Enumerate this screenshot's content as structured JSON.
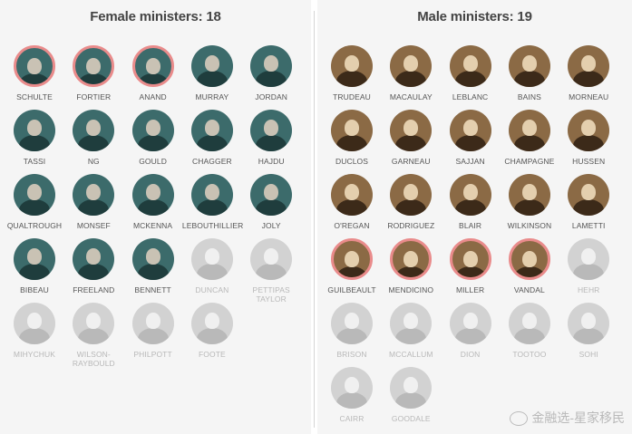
{
  "female": {
    "title": "Female ministers: 18",
    "people": [
      {
        "name": "SCHULTE",
        "style": "teal",
        "ring": true
      },
      {
        "name": "FORTIER",
        "style": "teal",
        "ring": true
      },
      {
        "name": "ANAND",
        "style": "teal",
        "ring": true
      },
      {
        "name": "MURRAY",
        "style": "teal",
        "ring": false
      },
      {
        "name": "JORDAN",
        "style": "teal",
        "ring": false
      },
      {
        "name": "TASSI",
        "style": "teal",
        "ring": false
      },
      {
        "name": "NG",
        "style": "teal",
        "ring": false
      },
      {
        "name": "GOULD",
        "style": "teal",
        "ring": false
      },
      {
        "name": "CHAGGER",
        "style": "teal",
        "ring": false
      },
      {
        "name": "HAJDU",
        "style": "teal",
        "ring": false
      },
      {
        "name": "QUALTROUGH",
        "style": "teal",
        "ring": false
      },
      {
        "name": "MONSEF",
        "style": "teal",
        "ring": false
      },
      {
        "name": "MCKENNA",
        "style": "teal",
        "ring": false
      },
      {
        "name": "LEBOUTHILLIER",
        "style": "teal",
        "ring": false
      },
      {
        "name": "JOLY",
        "style": "teal",
        "ring": false
      },
      {
        "name": "BIBEAU",
        "style": "teal",
        "ring": false
      },
      {
        "name": "FREELAND",
        "style": "teal",
        "ring": false
      },
      {
        "name": "BENNETT",
        "style": "teal",
        "ring": false
      },
      {
        "name": "DUNCAN",
        "style": "gray",
        "ring": false
      },
      {
        "name": "PETTIPAS TAYLOR",
        "style": "gray",
        "ring": false
      },
      {
        "name": "MIHYCHUK",
        "style": "gray",
        "ring": false
      },
      {
        "name": "WILSON-RAYBOULD",
        "style": "gray",
        "ring": false
      },
      {
        "name": "PHILPOTT",
        "style": "gray",
        "ring": false
      },
      {
        "name": "FOOTE",
        "style": "gray",
        "ring": false
      }
    ]
  },
  "male": {
    "title": "Male ministers: 19",
    "people": [
      {
        "name": "TRUDEAU",
        "style": "sepia",
        "ring": false
      },
      {
        "name": "MACAULAY",
        "style": "sepia",
        "ring": false
      },
      {
        "name": "LEBLANC",
        "style": "sepia",
        "ring": false
      },
      {
        "name": "BAINS",
        "style": "sepia",
        "ring": false
      },
      {
        "name": "MORNEAU",
        "style": "sepia",
        "ring": false
      },
      {
        "name": "DUCLOS",
        "style": "sepia",
        "ring": false
      },
      {
        "name": "GARNEAU",
        "style": "sepia",
        "ring": false
      },
      {
        "name": "SAJJAN",
        "style": "sepia",
        "ring": false
      },
      {
        "name": "CHAMPAGNE",
        "style": "sepia",
        "ring": false
      },
      {
        "name": "HUSSEN",
        "style": "sepia",
        "ring": false
      },
      {
        "name": "O'REGAN",
        "style": "sepia",
        "ring": false
      },
      {
        "name": "RODRIGUEZ",
        "style": "sepia",
        "ring": false
      },
      {
        "name": "BLAIR",
        "style": "sepia",
        "ring": false
      },
      {
        "name": "WILKINSON",
        "style": "sepia",
        "ring": false
      },
      {
        "name": "LAMETTI",
        "style": "sepia",
        "ring": false
      },
      {
        "name": "GUILBEAULT",
        "style": "sepia",
        "ring": true
      },
      {
        "name": "MENDICINO",
        "style": "sepia",
        "ring": true
      },
      {
        "name": "MILLER",
        "style": "sepia",
        "ring": true
      },
      {
        "name": "VANDAL",
        "style": "sepia",
        "ring": true
      },
      {
        "name": "HEHR",
        "style": "gray",
        "ring": false
      },
      {
        "name": "BRISON",
        "style": "gray",
        "ring": false
      },
      {
        "name": "MCCALLUM",
        "style": "gray",
        "ring": false
      },
      {
        "name": "DION",
        "style": "gray",
        "ring": false
      },
      {
        "name": "TOOTOO",
        "style": "gray",
        "ring": false
      },
      {
        "name": "SOHI",
        "style": "gray",
        "ring": false
      },
      {
        "name": "CAIRR",
        "style": "gray",
        "ring": false
      },
      {
        "name": "GOODALE",
        "style": "gray",
        "ring": false
      }
    ]
  },
  "colors": {
    "teal": "#3c6b6b",
    "sepia": "#8b6a45",
    "gray": "#d2d2d2",
    "ring": "#e98b8b"
  },
  "watermark": "金融选-星家移民"
}
